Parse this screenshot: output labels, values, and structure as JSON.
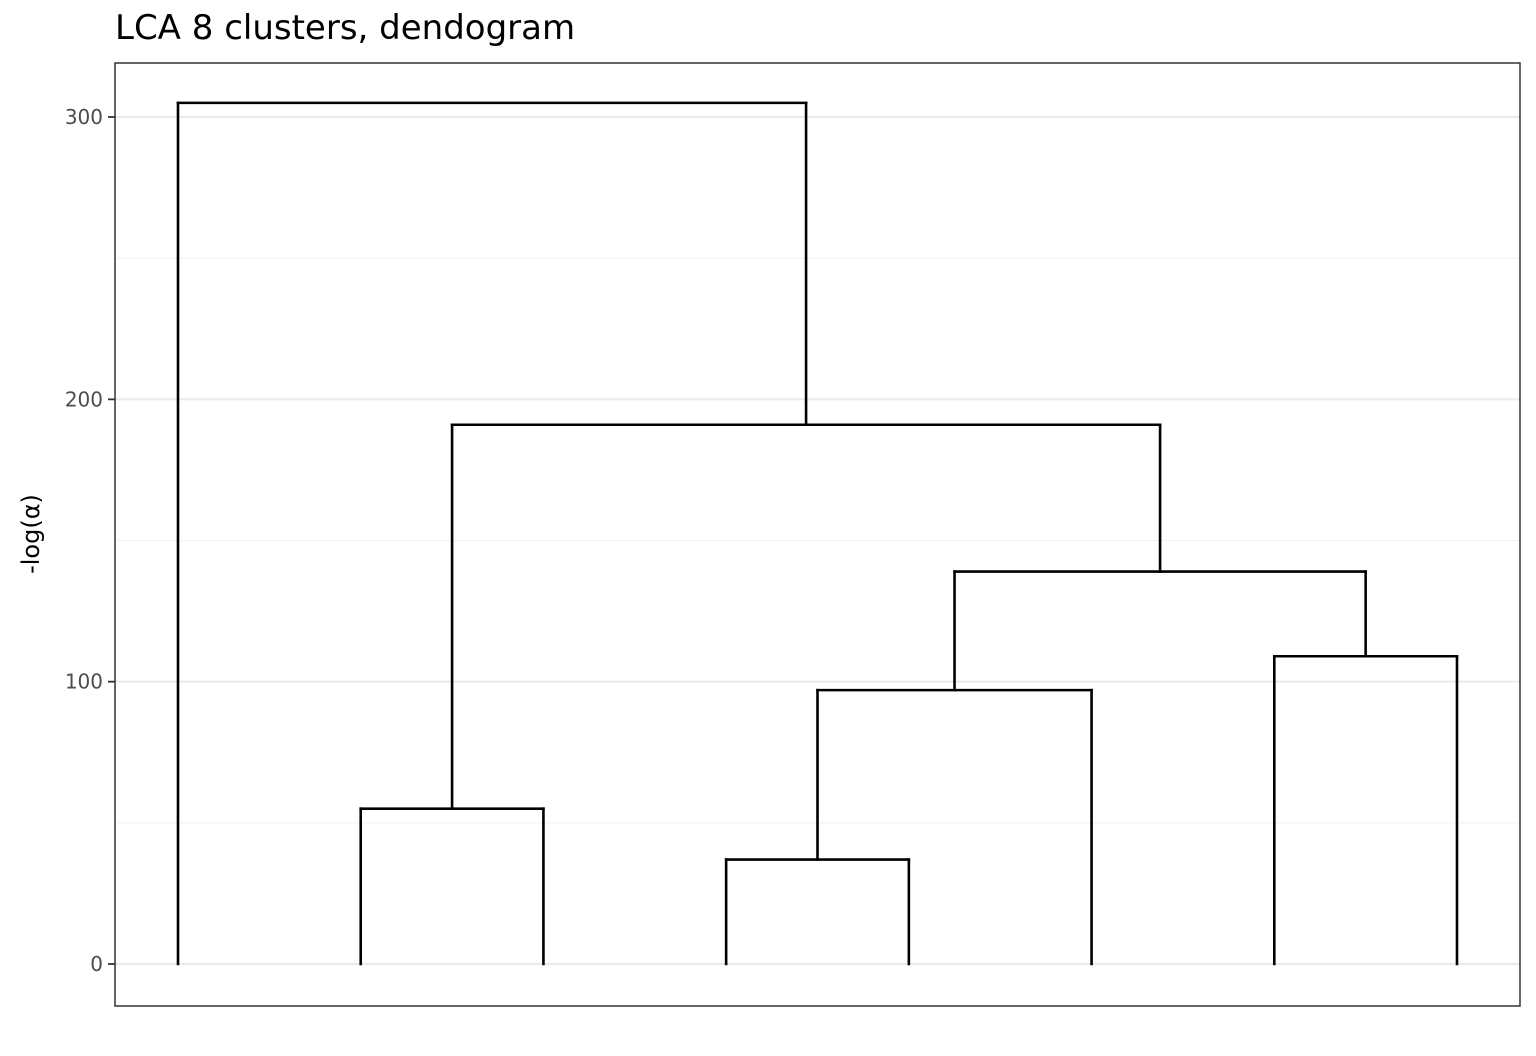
{
  "chart_data": {
    "type": "dendrogram",
    "title": "LCA 8 clusters, dendogram",
    "xlabel": "",
    "ylabel": "-log(α)",
    "ylim": [
      -14.5,
      319.5
    ],
    "y_ticks": [
      0,
      100,
      200,
      300
    ],
    "grid": true,
    "leaves": 8,
    "leaf_positions": [
      1,
      2,
      3,
      4,
      5,
      6,
      7,
      8
    ],
    "xlim": [
      0.65,
      8.35
    ],
    "merges": [
      {
        "left_x": 4,
        "right_x": 5,
        "height": 37
      },
      {
        "left_x": 2,
        "right_x": 3,
        "height": 55
      },
      {
        "left_x": 4.5,
        "right_x": 6,
        "height": 97
      },
      {
        "left_x": 7,
        "right_x": 8,
        "height": 109
      },
      {
        "left_x": 5.25,
        "right_x": 7.5,
        "height": 139
      },
      {
        "left_x": 2.5,
        "right_x": 6.375,
        "height": 191
      },
      {
        "left_x": 1,
        "right_x": 4.4375,
        "height": 305
      }
    ],
    "segments": [
      {
        "x1": 1,
        "y1": 0,
        "x2": 1,
        "y2": 305
      },
      {
        "x1": 1,
        "y1": 305,
        "x2": 4.4375,
        "y2": 305
      },
      {
        "x1": 4.4375,
        "y1": 305,
        "x2": 4.4375,
        "y2": 191
      },
      {
        "x1": 2.5,
        "y1": 191,
        "x2": 6.375,
        "y2": 191
      },
      {
        "x1": 2.5,
        "y1": 191,
        "x2": 2.5,
        "y2": 55
      },
      {
        "x1": 2,
        "y1": 55,
        "x2": 3,
        "y2": 55
      },
      {
        "x1": 2,
        "y1": 55,
        "x2": 2,
        "y2": 0
      },
      {
        "x1": 3,
        "y1": 55,
        "x2": 3,
        "y2": 0
      },
      {
        "x1": 6.375,
        "y1": 191,
        "x2": 6.375,
        "y2": 139
      },
      {
        "x1": 5.25,
        "y1": 139,
        "x2": 7.5,
        "y2": 139
      },
      {
        "x1": 5.25,
        "y1": 139,
        "x2": 5.25,
        "y2": 97
      },
      {
        "x1": 4.5,
        "y1": 97,
        "x2": 6,
        "y2": 97
      },
      {
        "x1": 4.5,
        "y1": 97,
        "x2": 4.5,
        "y2": 37
      },
      {
        "x1": 4,
        "y1": 37,
        "x2": 5,
        "y2": 37
      },
      {
        "x1": 4,
        "y1": 37,
        "x2": 4,
        "y2": 0
      },
      {
        "x1": 5,
        "y1": 37,
        "x2": 5,
        "y2": 0
      },
      {
        "x1": 6,
        "y1": 97,
        "x2": 6,
        "y2": 0
      },
      {
        "x1": 7.5,
        "y1": 139,
        "x2": 7.5,
        "y2": 109
      },
      {
        "x1": 7,
        "y1": 109,
        "x2": 8,
        "y2": 109
      },
      {
        "x1": 7,
        "y1": 109,
        "x2": 7,
        "y2": 0
      },
      {
        "x1": 8,
        "y1": 109,
        "x2": 8,
        "y2": 0
      }
    ],
    "colors": {
      "line": "#000000",
      "grid_major": "#ebebeb",
      "grid_minor": "#f2f2f2",
      "panel_border": "#333333",
      "tick_text": "#4d4d4d",
      "tick_mark": "#333333"
    }
  }
}
